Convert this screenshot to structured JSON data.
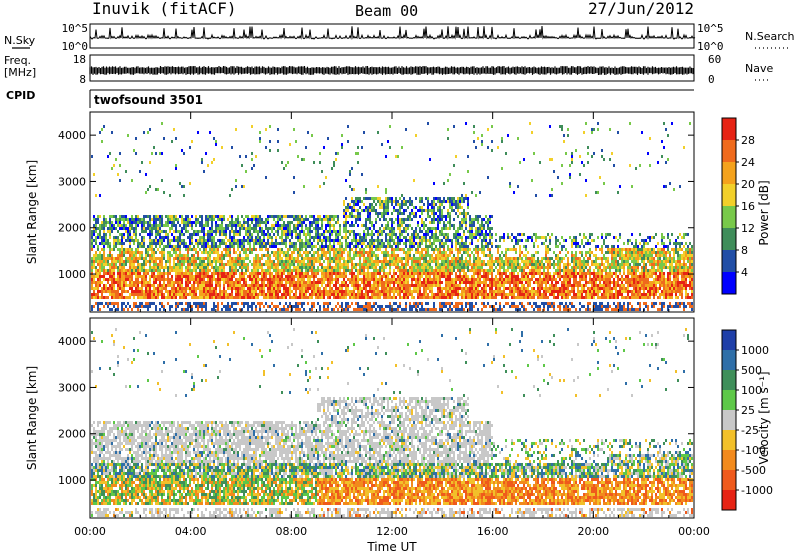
{
  "header": {
    "station": "Inuvik (fitACF)",
    "beam": "Beam 00",
    "date": "27/Jun/2012"
  },
  "top_panels": {
    "nsky_label": "N.Sky",
    "nsearch_label": "N.Search",
    "left_ticks": [
      "10^5",
      "10^0"
    ],
    "right_ticks": [
      "10^5",
      "10^0"
    ],
    "freq_label_1": "Freq.",
    "freq_label_2": "[MHz]",
    "freq_ticks": [
      "18",
      "8"
    ],
    "nave_label": "Nave",
    "nave_ticks": [
      "60",
      "0"
    ],
    "cpid_label": "CPID",
    "cpid_value": "twofsound 3501"
  },
  "chart_data": [
    {
      "type": "heatmap",
      "name": "power",
      "ylabel": "Slant Range [km]",
      "yticks": [
        "1000",
        "2000",
        "3000",
        "4000"
      ],
      "ylim": [
        180,
        4500
      ],
      "xlim": [
        0,
        24
      ],
      "xticks": [
        "00:00",
        "04:00",
        "08:00",
        "12:00",
        "16:00",
        "20:00",
        "00:00"
      ],
      "colorbar": {
        "label": "Power [dB]",
        "ticks": [
          "4",
          "8",
          "12",
          "16",
          "20",
          "24",
          "28"
        ],
        "colors": [
          "#0000ff",
          "#214ea6",
          "#3f8d5a",
          "#78c94a",
          "#f2d02a",
          "#f4a21c",
          "#ef6a1c",
          "#e62314"
        ]
      },
      "description_bands": [
        {
          "range_km": [
            500,
            1400
          ],
          "hours": [
            0,
            24
          ],
          "dominant": "orange-red"
        },
        {
          "range_km": [
            1400,
            2400
          ],
          "hours": [
            0,
            16
          ],
          "dominant": "green-blue"
        },
        {
          "range_km": [
            2000,
            2700
          ],
          "hours": [
            10,
            15
          ],
          "dominant": "green"
        }
      ]
    },
    {
      "type": "heatmap",
      "name": "velocity",
      "ylabel": "Slant Range [km]",
      "yticks": [
        "1000",
        "2000",
        "3000",
        "4000"
      ],
      "ylim": [
        180,
        4500
      ],
      "xlim": [
        0,
        24
      ],
      "xlabel": "Time UT",
      "xticks": [
        "00:00",
        "04:00",
        "08:00",
        "12:00",
        "16:00",
        "20:00",
        "00:00"
      ],
      "colorbar": {
        "label": "Velocity [m s⁻¹]",
        "ticks": [
          "1000",
          "500",
          "100",
          "25",
          "-25",
          "-100",
          "-500",
          "-1000"
        ],
        "colors": [
          "#1f3fa8",
          "#2f6fa8",
          "#3f8f5a",
          "#5ec848",
          "#c8c8c8",
          "#f2c02a",
          "#f28a1c",
          "#ef5a1c",
          "#e62314"
        ]
      }
    }
  ],
  "colors": {
    "ground_scatter": "#bfbfbf",
    "frame": "#000000"
  }
}
